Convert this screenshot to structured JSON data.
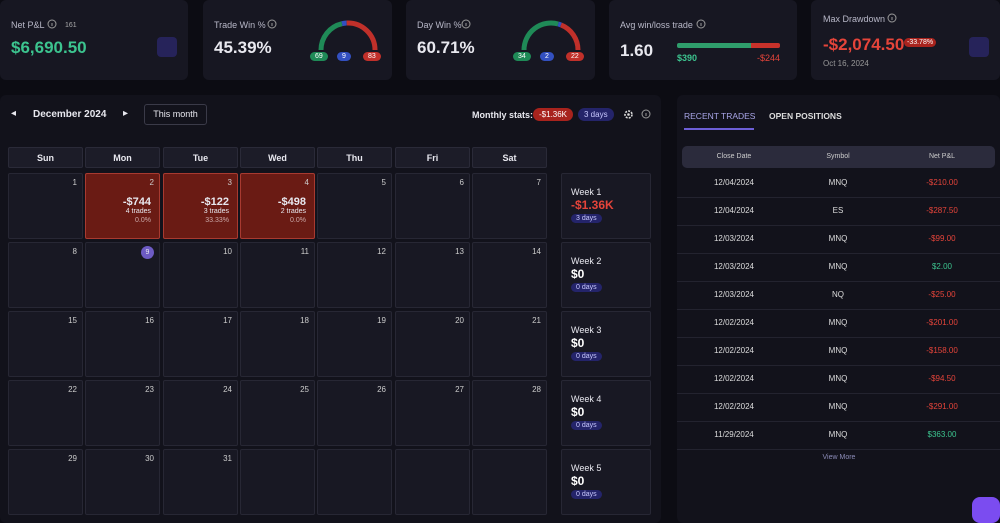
{
  "stats": {
    "net_pnl": {
      "label": "Net P&L",
      "count": "161",
      "value": "$6,690.50"
    },
    "trade_win": {
      "label": "Trade Win %",
      "value": "45.39%",
      "win": 69,
      "even": 9,
      "loss": 83
    },
    "day_win": {
      "label": "Day Win %",
      "value": "60.71%",
      "win": 34,
      "even": 2,
      "loss": 22
    },
    "avg_win_loss": {
      "label": "Avg win/loss trade",
      "value": "1.60",
      "avg_win": "$390",
      "avg_loss": "-$244"
    },
    "max_drawdown": {
      "label": "Max Drawdown",
      "value": "-$2,074.50",
      "percent": "-33.78%",
      "date": "Oct 16, 2024"
    }
  },
  "calendar": {
    "month": "December 2024",
    "this_month": "This month",
    "monthly_stats_label": "Monthly stats:",
    "monthly_pnl": "-$1.36K",
    "monthly_days": "3 days",
    "weekdays": [
      "Sun",
      "Mon",
      "Tue",
      "Wed",
      "Thu",
      "Fri",
      "Sat"
    ],
    "weeks": [
      [
        {
          "date": 1
        },
        {
          "date": 2,
          "pnl": "-$744",
          "trades": "4 trades",
          "rate": "0.0%"
        },
        {
          "date": 3,
          "pnl": "-$122",
          "trades": "3 trades",
          "rate": "33.33%"
        },
        {
          "date": 4,
          "pnl": "-$498",
          "trades": "2 trades",
          "rate": "0.0%"
        },
        {
          "date": 5
        },
        {
          "date": 6
        },
        {
          "date": 7
        }
      ],
      [
        {
          "date": 8
        },
        {
          "date": 9,
          "today": true
        },
        {
          "date": 10
        },
        {
          "date": 11
        },
        {
          "date": 12
        },
        {
          "date": 13
        },
        {
          "date": 14
        }
      ],
      [
        {
          "date": 15
        },
        {
          "date": 16
        },
        {
          "date": 17
        },
        {
          "date": 18
        },
        {
          "date": 19
        },
        {
          "date": 20
        },
        {
          "date": 21
        }
      ],
      [
        {
          "date": 22
        },
        {
          "date": 23
        },
        {
          "date": 24
        },
        {
          "date": 25
        },
        {
          "date": 26
        },
        {
          "date": 27
        },
        {
          "date": 28
        }
      ],
      [
        {
          "date": 29
        },
        {
          "date": 30
        },
        {
          "date": 31
        },
        null,
        null,
        null,
        null
      ]
    ],
    "week_summary": [
      {
        "label": "Week 1",
        "pnl": "-$1.36K",
        "days": "3 days"
      },
      {
        "label": "Week 2",
        "pnl": "$0",
        "days": "0 days"
      },
      {
        "label": "Week 3",
        "pnl": "$0",
        "days": "0 days"
      },
      {
        "label": "Week 4",
        "pnl": "$0",
        "days": "0 days"
      },
      {
        "label": "Week 5",
        "pnl": "$0",
        "days": "0 days"
      }
    ]
  },
  "trades": {
    "tabs": [
      "RECENT TRADES",
      "OPEN POSITIONS"
    ],
    "columns": [
      "Close Date",
      "Symbol",
      "Net P&L"
    ],
    "rows": [
      [
        "12/04/2024",
        "MNQ",
        "-$210.00"
      ],
      [
        "12/04/2024",
        "ES",
        "-$287.50"
      ],
      [
        "12/03/2024",
        "MNQ",
        "-$99.00"
      ],
      [
        "12/03/2024",
        "MNQ",
        "$2.00"
      ],
      [
        "12/03/2024",
        "NQ",
        "-$25.00"
      ],
      [
        "12/02/2024",
        "MNQ",
        "-$201.00"
      ],
      [
        "12/02/2024",
        "MNQ",
        "-$158.00"
      ],
      [
        "12/02/2024",
        "MNQ",
        "-$94.50"
      ],
      [
        "12/02/2024",
        "MNQ",
        "-$291.00"
      ],
      [
        "11/29/2024",
        "MNQ",
        "$363.00"
      ]
    ],
    "view_more": "View More"
  }
}
